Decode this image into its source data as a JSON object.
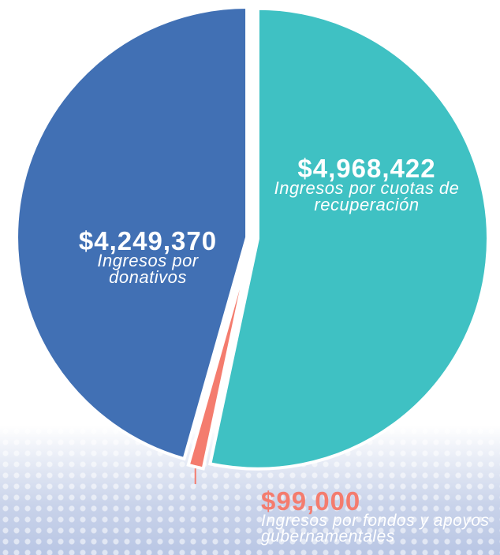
{
  "chart_data": {
    "type": "pie",
    "categories": [
      "Ingresos por cuotas de recuperación",
      "Ingresos por fondos y apoyos gubernamentales",
      "Ingresos por donativos"
    ],
    "values": [
      4968422,
      99000,
      4249370
    ],
    "value_labels": [
      "$4,968,422",
      "$99,000",
      "$4,249,370"
    ],
    "colors": [
      "#3fc1c3",
      "#f47c6e",
      "#4170b4"
    ]
  }
}
